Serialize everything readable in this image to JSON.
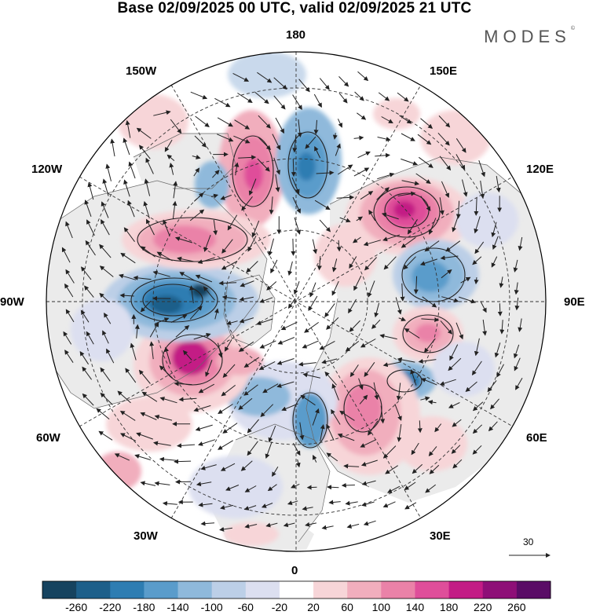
{
  "title": "Base 02/09/2025 00 UTC, valid 02/09/2025 21 UTC",
  "brand": "MODES",
  "brand_mark": "©",
  "longitudes": {
    "top": "180",
    "bottom": "0",
    "left": "90W",
    "right": "90E",
    "upper_left_1": "150W",
    "upper_left_2": "120W",
    "lower_left_1": "60W",
    "lower_left_2": "30W",
    "upper_right_1": "150E",
    "upper_right_2": "120E",
    "lower_right_1": "60E",
    "lower_right_2": "30E"
  },
  "vector_reference": "30",
  "colorbar": {
    "labels": [
      "-260",
      "-220",
      "-180",
      "-140",
      "-100",
      "-60",
      "-20",
      "20",
      "60",
      "100",
      "140",
      "180",
      "220",
      "260"
    ],
    "colors": [
      "#16435f",
      "#1d5f8a",
      "#2e7db2",
      "#5a9ccb",
      "#8fb9db",
      "#bccfe7",
      "#dcdff0",
      "#ffffff",
      "#f7d5d8",
      "#f1aebd",
      "#ea82a8",
      "#df4e9a",
      "#c31c85",
      "#8e0f77",
      "#5a0c66"
    ]
  },
  "anomaly_centers": [
    {
      "name": "anomaly-high-north-center",
      "value": 180
    },
    {
      "name": "anomaly-low-north-center",
      "value": -160
    },
    {
      "name": "anomaly-high-east-siberia",
      "value": 220
    },
    {
      "name": "anomaly-low-central-siberia",
      "value": -160
    },
    {
      "name": "anomaly-high-kara",
      "value": 140
    },
    {
      "name": "anomaly-low-ural",
      "value": -180
    },
    {
      "name": "anomaly-high-europe",
      "value": 180
    },
    {
      "name": "anomaly-low-scandinavia",
      "value": -140
    },
    {
      "name": "anomaly-high-atlantic",
      "value": 220
    },
    {
      "name": "anomaly-low-canada",
      "value": -240
    },
    {
      "name": "anomaly-high-alaska",
      "value": 160
    },
    {
      "name": "anomaly-high-pacific",
      "value": 60
    }
  ]
}
